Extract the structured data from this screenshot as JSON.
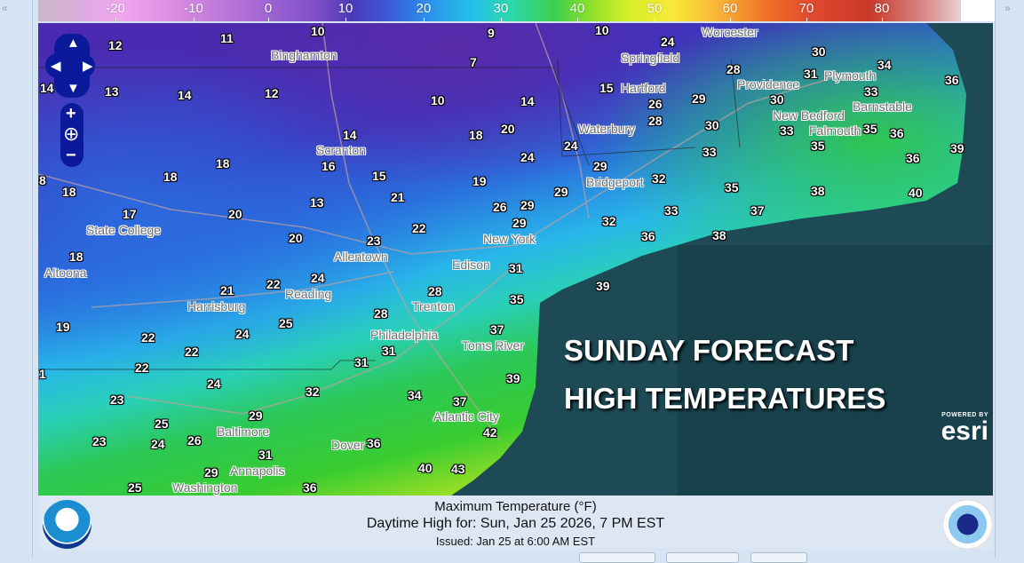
{
  "colorbar": {
    "unit": "°F",
    "ticks": [
      "-20",
      "-10",
      "0",
      "10",
      "20",
      "30",
      "40",
      "50",
      "60",
      "70",
      "80"
    ],
    "colors": [
      "#e2a8e6",
      "#b070d8",
      "#4d3ab8",
      "#24c0ea",
      "#3cd050",
      "#f8e838",
      "#f07028",
      "#c83828"
    ]
  },
  "map": {
    "headline_line1": "SUNDAY FORECAST",
    "headline_line2": "HIGH TEMPERATURES",
    "attribution_powered": "POWERED BY",
    "attribution_logo": "esri",
    "cities": [
      "Binghamton",
      "Springfield",
      "Worcester",
      "Providence",
      "Plymouth",
      "Barnstable",
      "New Bedford",
      "Falmouth",
      "Hartford",
      "Waterbury",
      "Bridgeport",
      "Scranton",
      "State College",
      "Altoona",
      "Allentown",
      "New York",
      "Edison",
      "Reading",
      "Harrisburg",
      "Trenton",
      "Philadelphia",
      "Toms River",
      "Atlantic City",
      "Baltimore",
      "Annapolis",
      "Washington",
      "Dover"
    ],
    "temperatures": [
      "12",
      "11",
      "10",
      "9",
      "10",
      "24",
      "30",
      "34",
      "36",
      "7",
      "13",
      "14",
      "12",
      "10",
      "14",
      "15",
      "26",
      "29",
      "28",
      "31",
      "33",
      "30",
      "33",
      "35",
      "36",
      "36",
      "39",
      "14",
      "18",
      "20",
      "24",
      "28",
      "30",
      "33",
      "35",
      "14",
      "16",
      "18",
      "18",
      "24",
      "29",
      "32",
      "35",
      "38",
      "40",
      "8",
      "18",
      "15",
      "19",
      "21",
      "29",
      "13",
      "26",
      "29",
      "33",
      "37",
      "17",
      "20",
      "22",
      "32",
      "36",
      "38",
      "20",
      "23",
      "29",
      "18",
      "24",
      "31",
      "22",
      "21",
      "28",
      "39",
      "35",
      "28",
      "25",
      "19",
      "22",
      "24",
      "37",
      "31",
      "22",
      "31",
      "22",
      "1",
      "24",
      "39",
      "32",
      "34",
      "37",
      "23",
      "25",
      "29",
      "42",
      "23",
      "24",
      "26",
      "36",
      "31",
      "40",
      "43",
      "29",
      "36",
      "25"
    ]
  },
  "controls": {
    "pan_up": "▲",
    "pan_left": "◀",
    "pan_right": "▶",
    "pan_down": "▼",
    "zoom_in": "+",
    "zoom_out": "−",
    "globe": "⊕"
  },
  "legend": {
    "title": "Maximum Temperature (°F)",
    "valid": "Daytime High for: Sun, Jan 25 2026,   7 PM EST",
    "issued": "Issued: Jan 25 at 6:00 AM EST",
    "noaa_logo": "NOAA",
    "nws_logo": "NATIONAL WEATHER SERVICE"
  }
}
